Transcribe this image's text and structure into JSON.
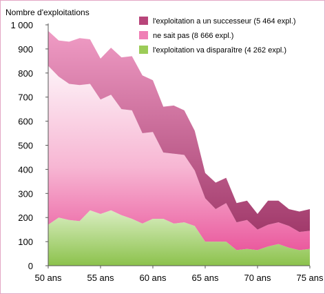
{
  "chart_data": {
    "type": "area",
    "stacked": true,
    "ylabel": "Nombre d'exploitations",
    "xlabel": "",
    "x": [
      50,
      51,
      52,
      53,
      54,
      55,
      56,
      57,
      58,
      59,
      60,
      61,
      62,
      63,
      64,
      65,
      66,
      67,
      68,
      69,
      70,
      71,
      72,
      73,
      74,
      75
    ],
    "x_ticks": [
      {
        "value": 50,
        "label": "50 ans"
      },
      {
        "value": 55,
        "label": "55 ans"
      },
      {
        "value": 60,
        "label": "60 ans"
      },
      {
        "value": 65,
        "label": "65 ans"
      },
      {
        "value": 70,
        "label": "70 ans"
      },
      {
        "value": 75,
        "label": "75 ans"
      }
    ],
    "y_ticks": [
      {
        "value": 0,
        "label": "0"
      },
      {
        "value": 100,
        "label": "100"
      },
      {
        "value": 200,
        "label": "200"
      },
      {
        "value": 300,
        "label": "300"
      },
      {
        "value": 400,
        "label": "400"
      },
      {
        "value": 500,
        "label": "500"
      },
      {
        "value": 600,
        "label": "600"
      },
      {
        "value": 700,
        "label": "700"
      },
      {
        "value": 800,
        "label": "800"
      },
      {
        "value": 900,
        "label": "900"
      },
      {
        "value": 1000,
        "label": "1 000"
      }
    ],
    "ylim": [
      0,
      1000
    ],
    "grid": false,
    "legend_position": "top-right",
    "series": [
      {
        "name": "l'exploitation va disparaître (4 262 expl.)",
        "color": "#9ccc58",
        "values": [
          170,
          200,
          190,
          185,
          230,
          215,
          230,
          210,
          195,
          175,
          195,
          195,
          175,
          180,
          165,
          100,
          100,
          100,
          65,
          70,
          65,
          80,
          90,
          75,
          65,
          70
        ]
      },
      {
        "name": "ne sait pas (8 666 expl.)",
        "color": "#ef7fb5",
        "values": [
          660,
          585,
          565,
          565,
          525,
          475,
          480,
          440,
          450,
          375,
          360,
          275,
          290,
          280,
          230,
          180,
          135,
          160,
          115,
          120,
          85,
          90,
          90,
          90,
          75,
          75
        ]
      },
      {
        "name": "l'exploitation a un successeur (5 464 expl.)",
        "color": "#b8457a",
        "values": [
          145,
          150,
          175,
          195,
          185,
          170,
          195,
          215,
          225,
          240,
          215,
          190,
          200,
          185,
          165,
          105,
          110,
          105,
          80,
          80,
          65,
          100,
          90,
          70,
          85,
          90
        ]
      }
    ]
  }
}
